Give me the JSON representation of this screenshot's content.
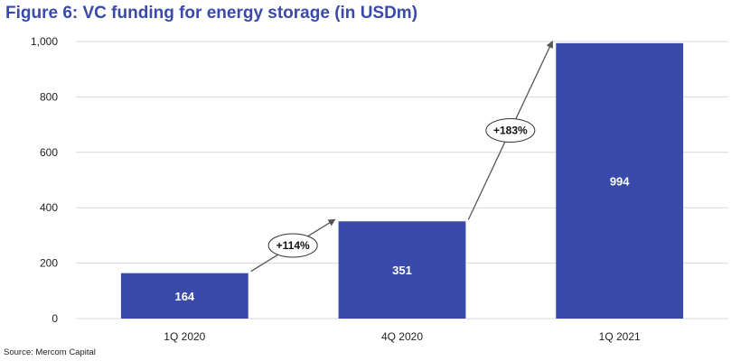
{
  "title": "Figure 6: VC funding for energy storage (in USDm)",
  "source": "Source: Mercom Capital",
  "chart_data": {
    "type": "bar",
    "title": "Figure 6: VC funding for energy storage (in USDm)",
    "categories": [
      "1Q 2020",
      "4Q 2020",
      "1Q 2021"
    ],
    "values": [
      164,
      351,
      994
    ],
    "data_labels": [
      "164",
      "351",
      "994"
    ],
    "ylim": [
      0,
      1000
    ],
    "yticks": [
      0,
      200,
      400,
      600,
      800,
      1000
    ],
    "ytick_labels": [
      "0",
      "200",
      "400",
      "600",
      "800",
      "1,000"
    ],
    "grid": true,
    "annotations": [
      {
        "text": "+114%",
        "from": "1Q 2020",
        "to": "4Q 2020"
      },
      {
        "text": "+183%",
        "from": "4Q 2020",
        "to": "1Q 2021"
      }
    ],
    "colors": {
      "bar": "#3a4aab",
      "grid": "#d9d9d9",
      "arrow": "#555555"
    }
  }
}
